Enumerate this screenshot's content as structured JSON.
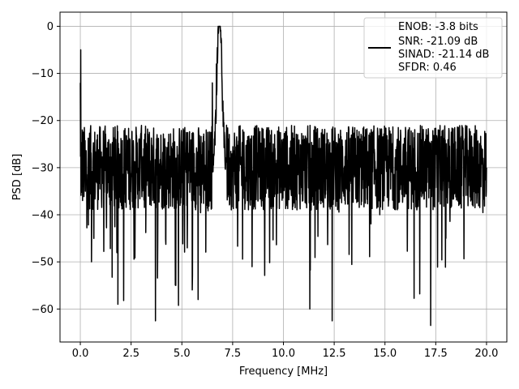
{
  "chart_data": {
    "type": "line",
    "title": "",
    "xlabel": "Frequency [MHz]",
    "ylabel": "PSD [dB]",
    "xlim": [
      -1.0,
      21.0
    ],
    "ylim": [
      -67,
      3
    ],
    "xticks": [
      0.0,
      2.5,
      5.0,
      7.5,
      10.0,
      12.5,
      15.0,
      17.5,
      20.0
    ],
    "xtick_labels": [
      "0.0",
      "2.5",
      "5.0",
      "7.5",
      "10.0",
      "12.5",
      "15.0",
      "17.5",
      "20.0"
    ],
    "yticks": [
      0,
      -10,
      -20,
      -30,
      -40,
      -50,
      -60
    ],
    "ytick_labels": [
      "0",
      "−10",
      "−20",
      "−30",
      "−40",
      "−50",
      "−60"
    ],
    "grid": true,
    "legend_position": "top-right",
    "line_color": "#000000",
    "series": [
      {
        "legend_lines": [
          "ENOB: -3.8 bits",
          "SNR: -21.09 dB",
          "SINAD: -21.14 dB",
          "SFDR: 0.46"
        ],
        "description": "noisy power spectral density, floor about -30 dB with envelope -20 to -45 dB, narrow peak near 0 dB at 6.85 MHz",
        "peak": {
          "x": 6.85,
          "y": 0
        },
        "x": [
          0.0,
          0.02,
          0.1,
          0.25,
          0.5,
          0.55,
          1.0,
          1.5,
          1.85,
          2.4,
          3.0,
          3.7,
          4.0,
          4.5,
          4.7,
          5.0,
          5.8,
          6.2,
          6.5,
          6.7,
          6.85,
          7.0,
          7.2,
          7.5,
          8.0,
          8.8,
          9.5,
          10.0,
          11.0,
          11.3,
          12.0,
          12.4,
          13.0,
          14.0,
          15.0,
          15.6,
          16.0,
          16.5,
          17.0,
          17.25,
          17.7,
          18.0,
          19.0,
          19.5,
          20.0
        ],
        "y": [
          -12,
          -5,
          -22,
          -35,
          -22,
          -50,
          -30,
          -25,
          -59,
          -28,
          -22,
          -62.5,
          -30,
          -26,
          -55,
          -25,
          -58,
          -22,
          -12,
          -8,
          0,
          -18,
          -21,
          -28,
          -22,
          -32,
          -25,
          -30,
          -26,
          -60,
          -25,
          -62.5,
          -30,
          -25,
          -28,
          -24,
          -33,
          -30,
          -24,
          -63.5,
          -26,
          -45,
          -27,
          -30,
          -30
        ]
      }
    ]
  }
}
